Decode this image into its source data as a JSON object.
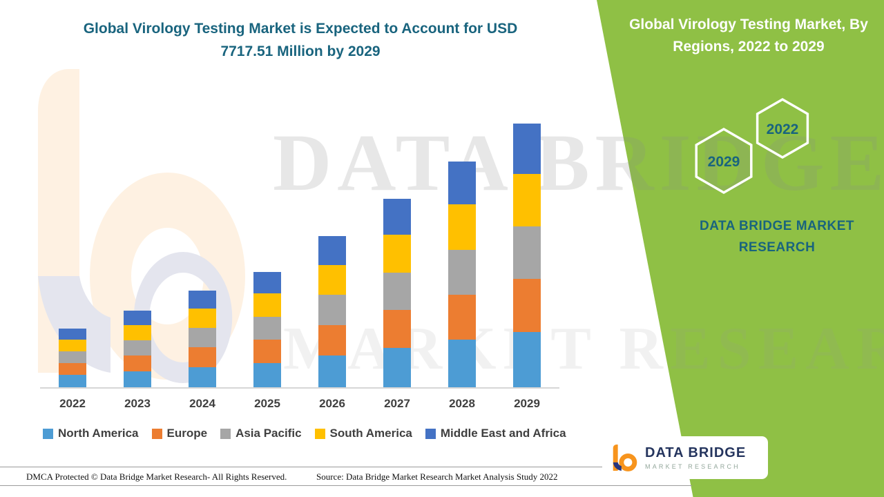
{
  "chart_data": {
    "type": "bar",
    "stacked": true,
    "title": "Global Virology Testing Market is Expected to Account for USD 7717.51 Million by 2029",
    "unit": "USD Million",
    "categories": [
      "2022",
      "2023",
      "2024",
      "2025",
      "2026",
      "2027",
      "2028",
      "2029"
    ],
    "series": [
      {
        "name": "North America",
        "color": "#4D9CD4",
        "values": [
          361,
          473,
          596,
          710,
          928,
          1157,
          1386,
          1620.51
        ]
      },
      {
        "name": "Europe",
        "color": "#EC7D31",
        "values": [
          344,
          450,
          568,
          676,
          884,
          1102,
          1320,
          1543
        ]
      },
      {
        "name": "Asia Pacific",
        "color": "#A6A6A6",
        "values": [
          344,
          450,
          568,
          676,
          884,
          1102,
          1320,
          1543
        ]
      },
      {
        "name": "South America",
        "color": "#FFC000",
        "values": [
          344,
          450,
          568,
          676,
          884,
          1102,
          1320,
          1543
        ]
      },
      {
        "name": "Middle East and Africa",
        "color": "#4472C4",
        "values": [
          327,
          427,
          540,
          642,
          840,
          1047,
          1254,
          1468
        ]
      }
    ],
    "totals": [
      1720,
      2250,
      2840,
      3380,
      4420,
      5510,
      6600,
      7717.51
    ],
    "ylim": [
      0,
      8500
    ],
    "grid": false,
    "legend_position": "bottom",
    "note": "segment values estimated from bar heights; 2029 total labeled 7717.51"
  },
  "right_panel": {
    "title": "Global Virology Testing Market, By Regions, 2022 to 2029",
    "hexagons": [
      "2029",
      "2022"
    ],
    "brand_text": "DATA BRIDGE MARKET RESEARCH",
    "bg_color": "#8FC045",
    "accent_color": "#19647E"
  },
  "watermark": {
    "line1": "DATA BRIDGE",
    "line2": "MARKET RESEARCH"
  },
  "logo_box": {
    "brand": "DATA BRIDGE",
    "sub": "MARKET RESEARCH"
  },
  "footer": {
    "dmca": "DMCA Protected © Data Bridge Market Research- All Rights Reserved.",
    "source": "Source: Data Bridge Market Research Market Analysis Study 2022"
  }
}
